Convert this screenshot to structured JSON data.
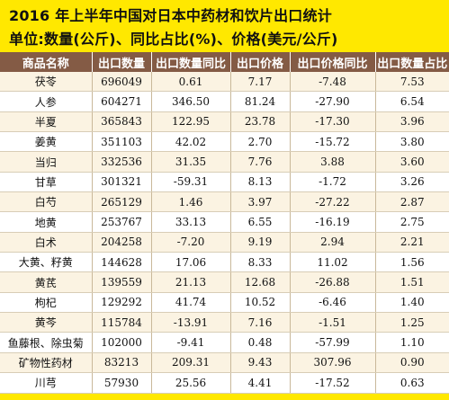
{
  "header": {
    "title": "2016 年上半年中国对日本中药材和饮片出口统计",
    "subtitle": "单位:数量(公斤)、同比占比(%)、价格(美元/公斤)"
  },
  "table": {
    "columns": [
      "商品名称",
      "出口数量",
      "出口数量同比",
      "出口价格",
      "出口价格同比",
      "出口数量占比"
    ],
    "rows": [
      [
        "茯苓",
        "696049",
        "0.61",
        "7.17",
        "-7.48",
        "7.53"
      ],
      [
        "人参",
        "604271",
        "346.50",
        "81.24",
        "-27.90",
        "6.54"
      ],
      [
        "半夏",
        "365843",
        "122.95",
        "23.78",
        "-17.30",
        "3.96"
      ],
      [
        "姜黄",
        "351103",
        "42.02",
        "2.70",
        "-15.72",
        "3.80"
      ],
      [
        "当归",
        "332536",
        "31.35",
        "7.76",
        "3.88",
        "3.60"
      ],
      [
        "甘草",
        "301321",
        "-59.31",
        "8.13",
        "-1.72",
        "3.26"
      ],
      [
        "白芍",
        "265129",
        "1.46",
        "3.97",
        "-27.22",
        "2.87"
      ],
      [
        "地黄",
        "253767",
        "33.13",
        "6.55",
        "-16.19",
        "2.75"
      ],
      [
        "白术",
        "204258",
        "-7.20",
        "9.19",
        "2.94",
        "2.21"
      ],
      [
        "大黄、籽黄",
        "144628",
        "17.06",
        "8.33",
        "11.02",
        "1.56"
      ],
      [
        "黄芪",
        "139559",
        "21.13",
        "12.68",
        "-26.88",
        "1.51"
      ],
      [
        "枸杞",
        "129292",
        "41.74",
        "10.52",
        "-6.46",
        "1.40"
      ],
      [
        "黄芩",
        "115784",
        "-13.91",
        "7.16",
        "-1.51",
        "1.25"
      ],
      [
        "鱼藤根、除虫菊",
        "102000",
        "-9.41",
        "0.48",
        "-57.99",
        "1.10"
      ],
      [
        "矿物性药材",
        "83213",
        "209.31",
        "9.43",
        "307.96",
        "0.90"
      ],
      [
        "川芎",
        "57930",
        "25.56",
        "4.41",
        "-17.52",
        "0.63"
      ]
    ]
  }
}
